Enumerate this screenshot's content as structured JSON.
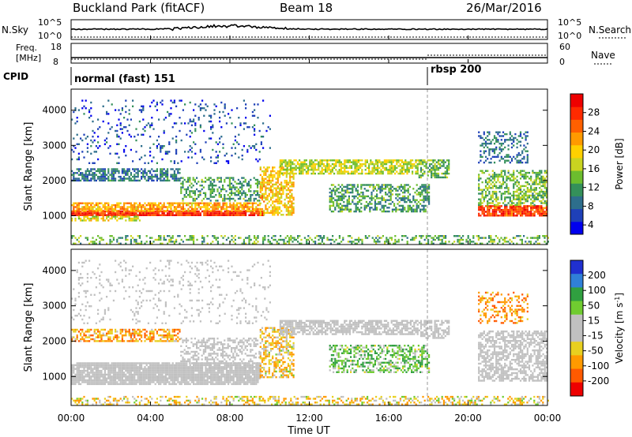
{
  "header": {
    "station": "Buckland Park (fitACF)",
    "beam": "Beam 18",
    "date": "26/Mar/2016"
  },
  "sky_panel": {
    "left_label": "N.Sky",
    "right_label": "N.Search",
    "tick_top": "10^5",
    "tick_bottom": "10^0"
  },
  "freq_panel": {
    "left_label_1": "Freq.",
    "left_label_2": "[MHz]",
    "left_ticks": [
      "18",
      "8"
    ],
    "right_label": "Nave",
    "right_ticks": [
      "60",
      "0"
    ]
  },
  "cpid_panel": {
    "label": "CPID",
    "modes": [
      {
        "name": "normal (fast) 151",
        "start_hour": 0
      },
      {
        "name": "rbsp 200",
        "start_hour": 18
      }
    ]
  },
  "time_axis": {
    "label": "Time UT",
    "ticks": [
      "00:00",
      "04:00",
      "08:00",
      "12:00",
      "16:00",
      "20:00",
      "00:00"
    ],
    "range_hours": [
      0,
      24
    ]
  },
  "range_axis": {
    "label": "Slant Range [km]",
    "ticks": [
      1000,
      2000,
      3000,
      4000
    ],
    "range_km": [
      180,
      4600
    ]
  },
  "power_colorbar": {
    "label": "Power [dB]",
    "ticks": [
      "28",
      "24",
      "20",
      "16",
      "12",
      "8",
      "4"
    ],
    "colors": [
      "#0000ee",
      "#1e40b8",
      "#2d6e8c",
      "#34905a",
      "#6cbd2e",
      "#c9d420",
      "#ffd000",
      "#ff9a00",
      "#ff6000",
      "#ff2a00",
      "#ee0000"
    ]
  },
  "velocity_colorbar": {
    "label": "Velocity [m s",
    "label_sup": "-1",
    "label_end": "]",
    "ticks": [
      "200",
      "100",
      "50",
      "15",
      "-15",
      "-50",
      "-100",
      "-200"
    ],
    "colors": [
      "#2030d0",
      "#3080d8",
      "#30a040",
      "#70cc30",
      "#c0c0c0",
      "#c0c0c0",
      "#e8d020",
      "#ff9a00",
      "#ff5a00",
      "#ee0000"
    ]
  },
  "chart_data": {
    "type": "heatmap",
    "title": "Buckland Park (fitACF) Beam 18 26/Mar/2016",
    "xlabel": "Time UT",
    "ylabel": "Slant Range [km]",
    "xlim_hours": [
      0,
      24
    ],
    "ylim_km": [
      180,
      4600
    ],
    "mode_change_hour": 18,
    "power_regions": [
      {
        "t0": 0,
        "t1": 9.7,
        "r0": 1000,
        "r1": 1150,
        "power_db": 28,
        "density": 0.95
      },
      {
        "t0": 0,
        "t1": 9.5,
        "r0": 1150,
        "r1": 1380,
        "power_db": 22,
        "density": 0.75
      },
      {
        "t0": 0,
        "t1": 3.5,
        "r0": 850,
        "r1": 1000,
        "power_db": 18,
        "density": 0.6
      },
      {
        "t0": 0,
        "t1": 5.5,
        "r0": 2000,
        "r1": 2350,
        "power_db": 9,
        "density": 0.65
      },
      {
        "t0": 5.5,
        "t1": 9.5,
        "r0": 1400,
        "r1": 2100,
        "power_db": 12,
        "density": 0.45
      },
      {
        "t0": 9.5,
        "t1": 11.2,
        "r0": 1000,
        "r1": 2400,
        "power_db": 20,
        "density": 0.6
      },
      {
        "t0": 10.5,
        "t1": 17.5,
        "r0": 2200,
        "r1": 2600,
        "power_db": 17,
        "density": 0.7
      },
      {
        "t0": 13,
        "t1": 18,
        "r0": 1100,
        "r1": 1900,
        "power_db": 12,
        "density": 0.5
      },
      {
        "t0": 17.5,
        "t1": 19,
        "r0": 2100,
        "r1": 2600,
        "power_db": 14,
        "density": 0.6
      },
      {
        "t0": 20.5,
        "t1": 24,
        "r0": 1000,
        "r1": 1300,
        "power_db": 27,
        "density": 0.85
      },
      {
        "t0": 20.5,
        "t1": 24,
        "r0": 1300,
        "r1": 2300,
        "power_db": 14,
        "density": 0.55
      },
      {
        "t0": 20.5,
        "t1": 23,
        "r0": 2500,
        "r1": 3400,
        "power_db": 9,
        "density": 0.35
      },
      {
        "t0": 0,
        "t1": 24,
        "r0": 200,
        "r1": 450,
        "power_db": 13,
        "density": 0.35
      },
      {
        "t0": 0,
        "t1": 10,
        "r0": 2500,
        "r1": 4300,
        "power_db": 7,
        "density": 0.1
      }
    ],
    "velocity_regions": [
      {
        "t0": 0,
        "t1": 9.5,
        "r0": 800,
        "r1": 1400,
        "velocity_ms": 0,
        "density": 0.9
      },
      {
        "t0": 0,
        "t1": 5.5,
        "r0": 2000,
        "r1": 2350,
        "velocity_ms": -70,
        "density": 0.6
      },
      {
        "t0": 5.5,
        "t1": 9.5,
        "r0": 1400,
        "r1": 2100,
        "velocity_ms": 0,
        "density": 0.45
      },
      {
        "t0": 9.5,
        "t1": 11.2,
        "r0": 1000,
        "r1": 2400,
        "velocity_ms": -40,
        "density": 0.55
      },
      {
        "t0": 10.5,
        "t1": 17.5,
        "r0": 2200,
        "r1": 2600,
        "velocity_ms": 0,
        "density": 0.7
      },
      {
        "t0": 13,
        "t1": 18,
        "r0": 1100,
        "r1": 1900,
        "velocity_ms": 40,
        "density": 0.5
      },
      {
        "t0": 17.5,
        "t1": 19,
        "r0": 2100,
        "r1": 2600,
        "velocity_ms": 0,
        "density": 0.6
      },
      {
        "t0": 20.5,
        "t1": 24,
        "r0": 900,
        "r1": 2300,
        "velocity_ms": 0,
        "density": 0.6
      },
      {
        "t0": 20.5,
        "t1": 23,
        "r0": 2500,
        "r1": 3400,
        "velocity_ms": -80,
        "density": 0.35
      },
      {
        "t0": 0,
        "t1": 24,
        "r0": 200,
        "r1": 450,
        "velocity_ms": -30,
        "density": 0.35
      },
      {
        "t0": 0,
        "t1": 10,
        "r0": 2500,
        "r1": 4300,
        "velocity_ms": 0,
        "density": 0.1
      }
    ]
  }
}
